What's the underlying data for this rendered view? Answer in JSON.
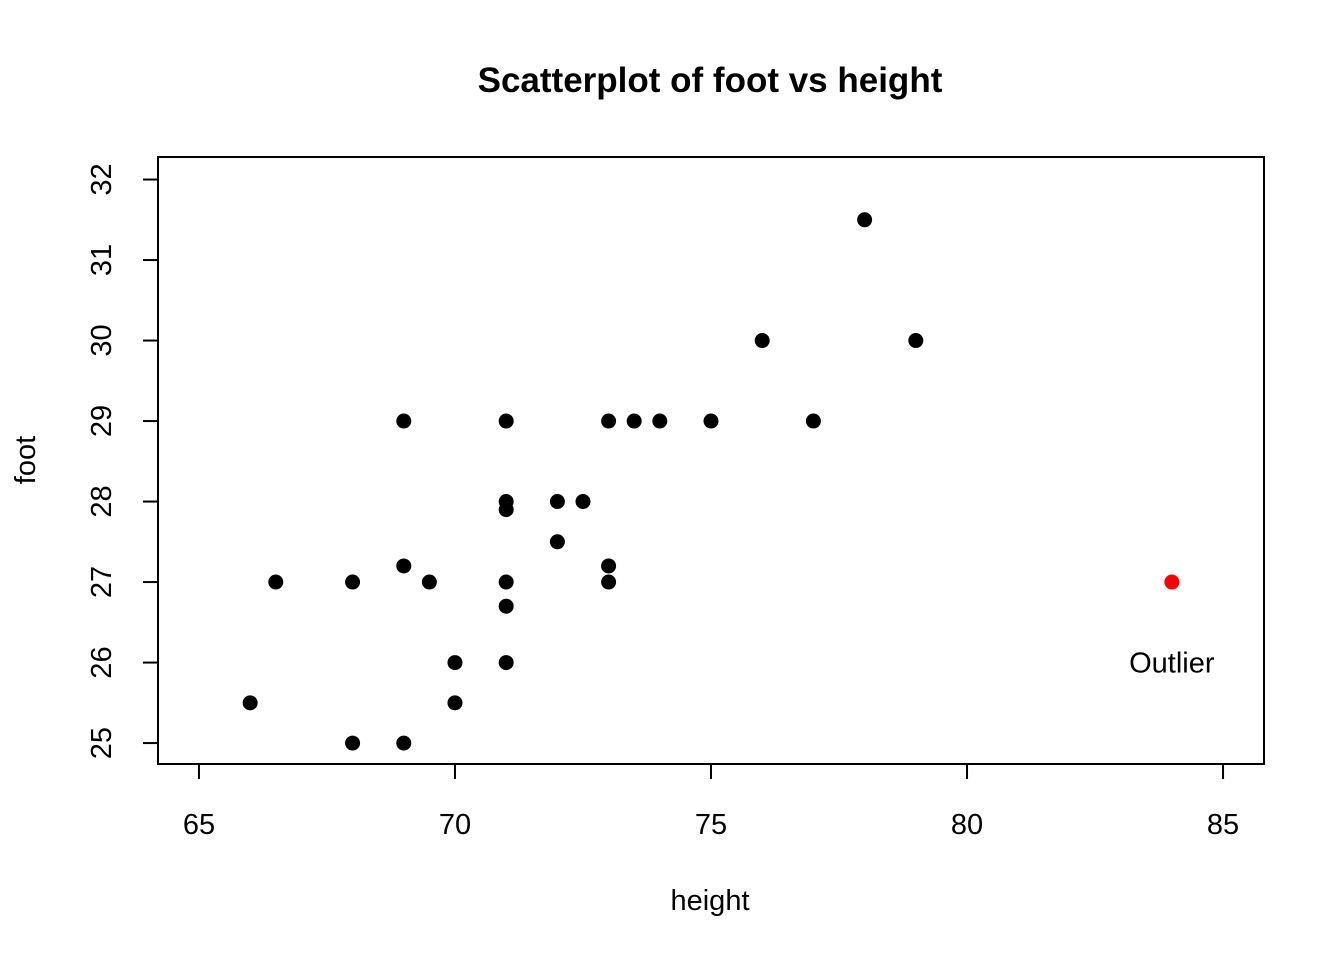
{
  "chart_data": {
    "type": "scatter",
    "title": "Scatterplot of foot vs height",
    "xlabel": "height",
    "ylabel": "foot",
    "xlim": [
      64.2,
      85.8
    ],
    "ylim": [
      24.74,
      32.28
    ],
    "xticks": [
      65,
      70,
      75,
      80,
      85
    ],
    "yticks": [
      25,
      26,
      27,
      28,
      29,
      30,
      31,
      32
    ],
    "grid": false,
    "legend": "none",
    "series": [
      {
        "color": "#000000",
        "points": [
          {
            "x": 66,
            "y": 25.5
          },
          {
            "x": 66.5,
            "y": 27
          },
          {
            "x": 68,
            "y": 25
          },
          {
            "x": 68,
            "y": 27
          },
          {
            "x": 69,
            "y": 25
          },
          {
            "x": 69,
            "y": 27.2
          },
          {
            "x": 69,
            "y": 29
          },
          {
            "x": 69.5,
            "y": 27
          },
          {
            "x": 70,
            "y": 25.5
          },
          {
            "x": 70,
            "y": 26
          },
          {
            "x": 71,
            "y": 26
          },
          {
            "x": 71,
            "y": 26.7
          },
          {
            "x": 71,
            "y": 27
          },
          {
            "x": 71,
            "y": 27.9
          },
          {
            "x": 71,
            "y": 28
          },
          {
            "x": 71,
            "y": 29
          },
          {
            "x": 72,
            "y": 27.5
          },
          {
            "x": 72,
            "y": 28
          },
          {
            "x": 72.5,
            "y": 28
          },
          {
            "x": 73,
            "y": 27
          },
          {
            "x": 73,
            "y": 27.2
          },
          {
            "x": 73,
            "y": 29
          },
          {
            "x": 73.5,
            "y": 29
          },
          {
            "x": 74,
            "y": 29
          },
          {
            "x": 75,
            "y": 29
          },
          {
            "x": 76,
            "y": 30
          },
          {
            "x": 77,
            "y": 29
          },
          {
            "x": 78,
            "y": 31.5
          },
          {
            "x": 79,
            "y": 30
          }
        ]
      },
      {
        "color": "#ff0000",
        "points": [
          {
            "x": 84,
            "y": 27
          }
        ]
      }
    ],
    "annotations": [
      {
        "text": "Outlier",
        "x": 84,
        "y": 26
      }
    ]
  }
}
